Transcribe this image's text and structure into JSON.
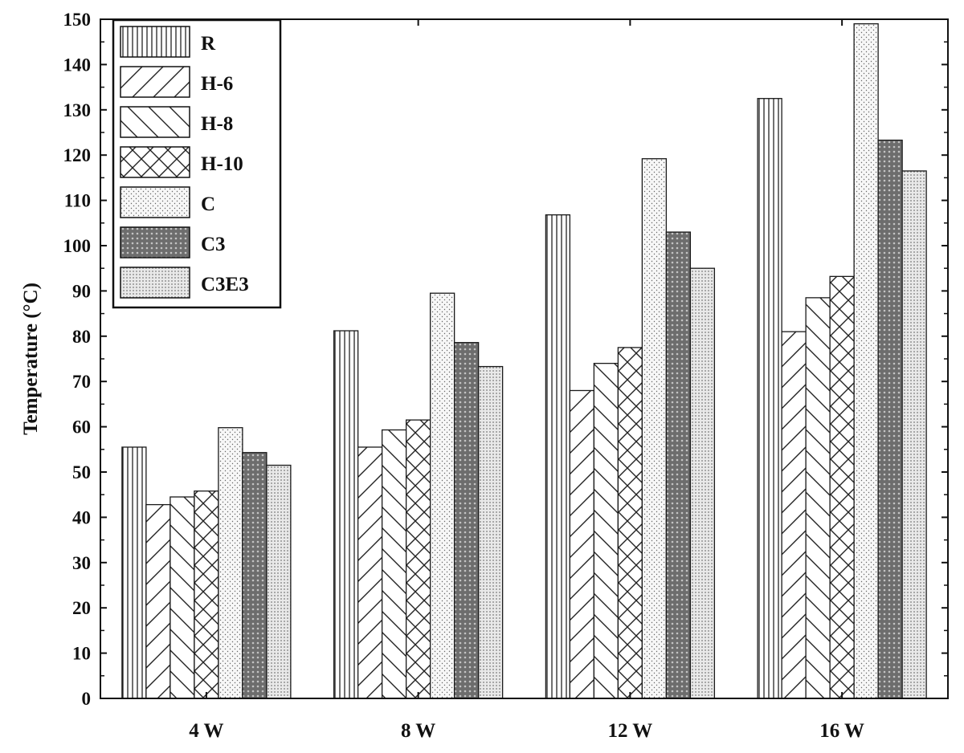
{
  "chart_data": {
    "type": "bar",
    "title": "",
    "xlabel": "",
    "ylabel": "Temperature (°C)",
    "ylim": [
      0,
      150
    ],
    "yticks": [
      0,
      10,
      20,
      30,
      40,
      50,
      60,
      70,
      80,
      90,
      100,
      110,
      120,
      130,
      140,
      150
    ],
    "grid": false,
    "legend_position": "top-left",
    "categories": [
      "4 W",
      "8 W",
      "12 W",
      "16 W"
    ],
    "series": [
      {
        "name": "R",
        "pattern": "vertical-lines",
        "values": [
          55.5,
          81.2,
          106.8,
          132.5
        ]
      },
      {
        "name": "H-6",
        "pattern": "forward-diagonal",
        "values": [
          42.8,
          55.5,
          68.0,
          81.0
        ]
      },
      {
        "name": "H-8",
        "pattern": "back-diagonal",
        "values": [
          44.5,
          59.3,
          74.0,
          88.5
        ]
      },
      {
        "name": "H-10",
        "pattern": "crosshatch",
        "values": [
          45.8,
          61.5,
          77.5,
          93.2
        ]
      },
      {
        "name": "C",
        "pattern": "sparse-dots",
        "values": [
          59.8,
          89.5,
          119.2,
          149.0
        ]
      },
      {
        "name": "C3",
        "pattern": "dark-grid",
        "values": [
          54.3,
          78.6,
          103.0,
          123.3
        ]
      },
      {
        "name": "C3E3",
        "pattern": "dense-dots",
        "values": [
          51.5,
          73.3,
          95.0,
          116.5
        ]
      }
    ]
  }
}
